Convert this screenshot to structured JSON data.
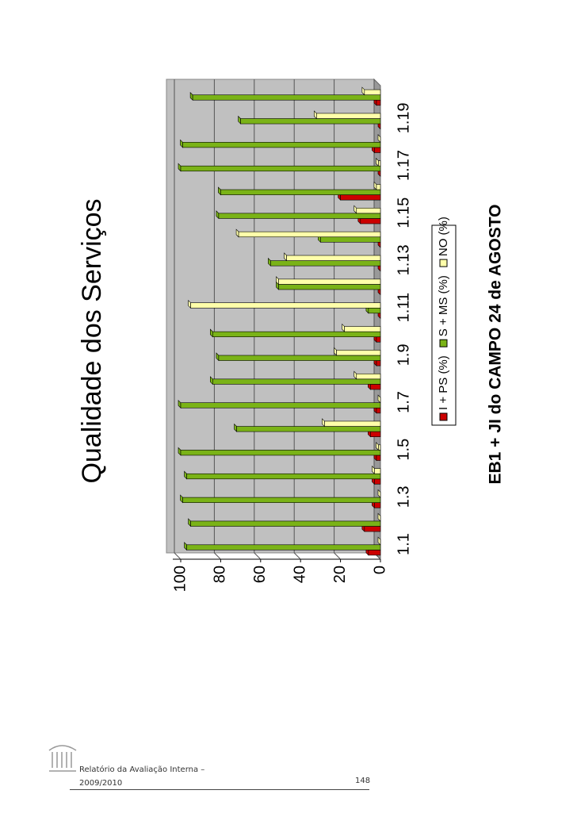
{
  "chart_data": {
    "type": "bar",
    "title": "Qualidade dos Serviços",
    "subtitle": "EB1 + JI do CAMPO 24 de AGOSTO",
    "categories": [
      "1.1",
      null,
      "1.3",
      null,
      "1.5",
      null,
      "1.7",
      null,
      "1.9",
      null,
      "1.11",
      null,
      "1.13",
      null,
      "1.15",
      null,
      "1.17",
      null,
      "1.19",
      null
    ],
    "series": [
      {
        "name": "I + PS (%)",
        "color": "#cc0000",
        "values": [
          6,
          8,
          3,
          3,
          2,
          5,
          2,
          5,
          2,
          2,
          0,
          0,
          0,
          0,
          10,
          20,
          0,
          3,
          0,
          2
        ]
      },
      {
        "name": "S + MS (%)",
        "color": "#7ab317",
        "values": [
          97,
          95,
          99,
          97,
          100,
          72,
          100,
          84,
          81,
          84,
          6,
          51,
          55,
          30,
          81,
          80,
          100,
          99,
          70,
          94
        ]
      },
      {
        "name": "NO (%)",
        "color": "#ffffaa",
        "values": [
          0,
          0,
          0,
          3,
          1,
          28,
          0,
          12,
          22,
          18,
          95,
          51,
          47,
          71,
          12,
          2,
          1,
          0,
          32,
          8
        ]
      }
    ],
    "ylim": [
      0,
      100
    ],
    "yticks": [
      0,
      20,
      40,
      60,
      80,
      100
    ],
    "grid": true,
    "legend": "bottom"
  },
  "footer": {
    "text": "Relatório da Avaliação Interna – 2009/2010",
    "page": "148"
  }
}
